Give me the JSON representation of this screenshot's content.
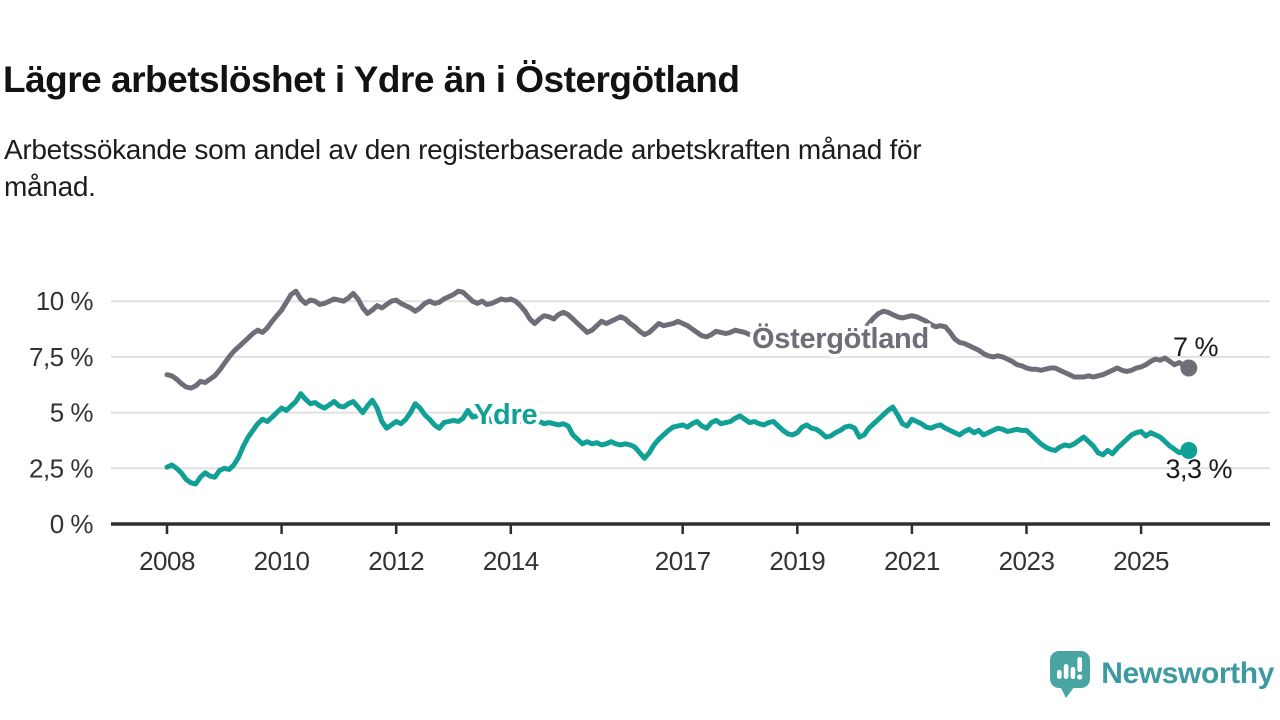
{
  "header": {
    "title": "Lägre arbetslöshet i Ydre än i Östergötland",
    "subtitle_lines": [
      "Arbetssökande som andel av den registerbaserade arbetskraften månad för",
      "månad."
    ]
  },
  "chart_data": {
    "type": "line",
    "x_unit": "month",
    "x_start": "2008-01",
    "x_end": "2025-11",
    "ylim": [
      0,
      11
    ],
    "grid": "horizontal",
    "y_ticks": [
      {
        "value": 0,
        "label": "0 %"
      },
      {
        "value": 2.5,
        "label": "2,5 %"
      },
      {
        "value": 5,
        "label": "5 %"
      },
      {
        "value": 7.5,
        "label": "7,5 %"
      },
      {
        "value": 10,
        "label": "10 %"
      }
    ],
    "x_ticks": [
      {
        "year": 2008,
        "label": "2008"
      },
      {
        "year": 2010,
        "label": "2010"
      },
      {
        "year": 2012,
        "label": "2012"
      },
      {
        "year": 2014,
        "label": "2014"
      },
      {
        "year": 2017,
        "label": "2017"
      },
      {
        "year": 2019,
        "label": "2019"
      },
      {
        "year": 2021,
        "label": "2021"
      },
      {
        "year": 2023,
        "label": "2023"
      },
      {
        "year": 2025,
        "label": "2025"
      }
    ],
    "series": [
      {
        "name": "Östergötland",
        "color": "#6e6e78",
        "end_label": "7 %",
        "values": [
          6.7,
          6.65,
          6.5,
          6.3,
          6.15,
          6.1,
          6.2,
          6.4,
          6.35,
          6.5,
          6.65,
          6.9,
          7.2,
          7.5,
          7.75,
          7.95,
          8.15,
          8.35,
          8.55,
          8.7,
          8.6,
          8.8,
          9.1,
          9.35,
          9.6,
          9.95,
          10.3,
          10.45,
          10.1,
          9.9,
          10.05,
          10.0,
          9.85,
          9.9,
          10.0,
          10.1,
          10.05,
          10.0,
          10.15,
          10.35,
          10.1,
          9.7,
          9.45,
          9.6,
          9.8,
          9.7,
          9.85,
          10.0,
          10.05,
          9.9,
          9.8,
          9.7,
          9.55,
          9.7,
          9.9,
          10.0,
          9.9,
          9.95,
          10.1,
          10.2,
          10.3,
          10.45,
          10.4,
          10.2,
          10.0,
          9.9,
          10.0,
          9.85,
          9.9,
          10.0,
          10.1,
          10.05,
          10.1,
          10.0,
          9.8,
          9.55,
          9.2,
          9.0,
          9.2,
          9.35,
          9.3,
          9.2,
          9.4,
          9.5,
          9.4,
          9.2,
          9.0,
          8.8,
          8.6,
          8.7,
          8.9,
          9.1,
          9.0,
          9.1,
          9.2,
          9.3,
          9.2,
          9.0,
          8.85,
          8.65,
          8.5,
          8.6,
          8.8,
          9.0,
          8.9,
          8.95,
          9.0,
          9.1,
          9.0,
          8.9,
          8.75,
          8.6,
          8.45,
          8.4,
          8.5,
          8.65,
          8.6,
          8.55,
          8.6,
          8.7,
          8.65,
          8.6,
          8.5,
          8.45,
          8.4,
          8.35,
          8.45,
          8.55,
          8.45,
          8.4,
          8.45,
          8.5,
          8.45,
          8.4,
          8.35,
          8.3,
          8.25,
          8.3,
          8.45,
          8.55,
          8.5,
          8.55,
          8.6,
          8.65,
          8.6,
          8.55,
          8.7,
          9.0,
          9.25,
          9.45,
          9.55,
          9.5,
          9.4,
          9.3,
          9.25,
          9.3,
          9.35,
          9.3,
          9.2,
          9.1,
          8.95,
          8.85,
          8.9,
          8.85,
          8.6,
          8.3,
          8.15,
          8.1,
          8.0,
          7.9,
          7.8,
          7.65,
          7.55,
          7.5,
          7.55,
          7.5,
          7.4,
          7.3,
          7.15,
          7.1,
          7.0,
          6.95,
          6.95,
          6.9,
          6.95,
          7.0,
          7.0,
          6.9,
          6.8,
          6.7,
          6.6,
          6.6,
          6.6,
          6.65,
          6.6,
          6.65,
          6.7,
          6.8,
          6.9,
          7.0,
          6.9,
          6.85,
          6.9,
          7.0,
          7.05,
          7.15,
          7.3,
          7.4,
          7.35,
          7.45,
          7.3,
          7.15,
          7.25,
          7.1,
          7.0
        ]
      },
      {
        "name": "Ydre",
        "color": "#10a096",
        "end_label": "3,3 %",
        "values": [
          2.55,
          2.65,
          2.5,
          2.3,
          2.0,
          1.85,
          1.8,
          2.1,
          2.3,
          2.15,
          2.1,
          2.4,
          2.5,
          2.45,
          2.65,
          3.0,
          3.5,
          3.9,
          4.2,
          4.5,
          4.7,
          4.6,
          4.8,
          5.0,
          5.2,
          5.1,
          5.3,
          5.5,
          5.85,
          5.6,
          5.4,
          5.45,
          5.3,
          5.2,
          5.35,
          5.5,
          5.3,
          5.25,
          5.4,
          5.5,
          5.25,
          5.0,
          5.3,
          5.55,
          5.2,
          4.6,
          4.3,
          4.45,
          4.6,
          4.5,
          4.7,
          5.0,
          5.4,
          5.2,
          4.9,
          4.7,
          4.45,
          4.3,
          4.55,
          4.6,
          4.65,
          4.6,
          4.75,
          5.1,
          4.8,
          4.85,
          5.0,
          4.8,
          4.6,
          4.55,
          4.6,
          4.65,
          4.6,
          4.5,
          4.65,
          4.55,
          4.5,
          4.55,
          4.6,
          4.5,
          4.55,
          4.5,
          4.45,
          4.5,
          4.4,
          4.0,
          3.8,
          3.6,
          3.7,
          3.6,
          3.65,
          3.55,
          3.6,
          3.7,
          3.6,
          3.55,
          3.6,
          3.55,
          3.45,
          3.2,
          2.95,
          3.2,
          3.55,
          3.8,
          4.0,
          4.2,
          4.35,
          4.4,
          4.45,
          4.35,
          4.5,
          4.6,
          4.4,
          4.3,
          4.55,
          4.65,
          4.5,
          4.55,
          4.6,
          4.75,
          4.85,
          4.7,
          4.55,
          4.6,
          4.5,
          4.45,
          4.55,
          4.6,
          4.4,
          4.2,
          4.05,
          4.0,
          4.1,
          4.35,
          4.45,
          4.3,
          4.25,
          4.1,
          3.9,
          3.95,
          4.1,
          4.2,
          4.35,
          4.4,
          4.3,
          3.9,
          4.0,
          4.3,
          4.5,
          4.7,
          4.9,
          5.1,
          5.25,
          4.9,
          4.5,
          4.4,
          4.7,
          4.6,
          4.5,
          4.35,
          4.3,
          4.4,
          4.45,
          4.3,
          4.2,
          4.1,
          4.0,
          4.15,
          4.25,
          4.1,
          4.2,
          4.0,
          4.1,
          4.2,
          4.3,
          4.25,
          4.15,
          4.2,
          4.25,
          4.2,
          4.2,
          4.0,
          3.8,
          3.6,
          3.45,
          3.35,
          3.3,
          3.45,
          3.55,
          3.5,
          3.6,
          3.75,
          3.9,
          3.7,
          3.5,
          3.2,
          3.1,
          3.3,
          3.15,
          3.4,
          3.6,
          3.8,
          4.0,
          4.1,
          4.15,
          3.95,
          4.1,
          4.0,
          3.9,
          3.7,
          3.5,
          3.35,
          3.2,
          3.25,
          3.3
        ]
      }
    ]
  },
  "branding": {
    "logo_text": "Newsworthy",
    "logo_icon": "newsworthy-speech-bubble-bar-chart-icon",
    "text_color": "#3d9aa0",
    "icon_color": "#4aa5a2"
  },
  "colors": {
    "axis": "#2e2e2e",
    "gridline": "#e0e0e0",
    "tick_label": "#333333",
    "value_label": "#1a1a1a",
    "background": "#ffffff"
  }
}
